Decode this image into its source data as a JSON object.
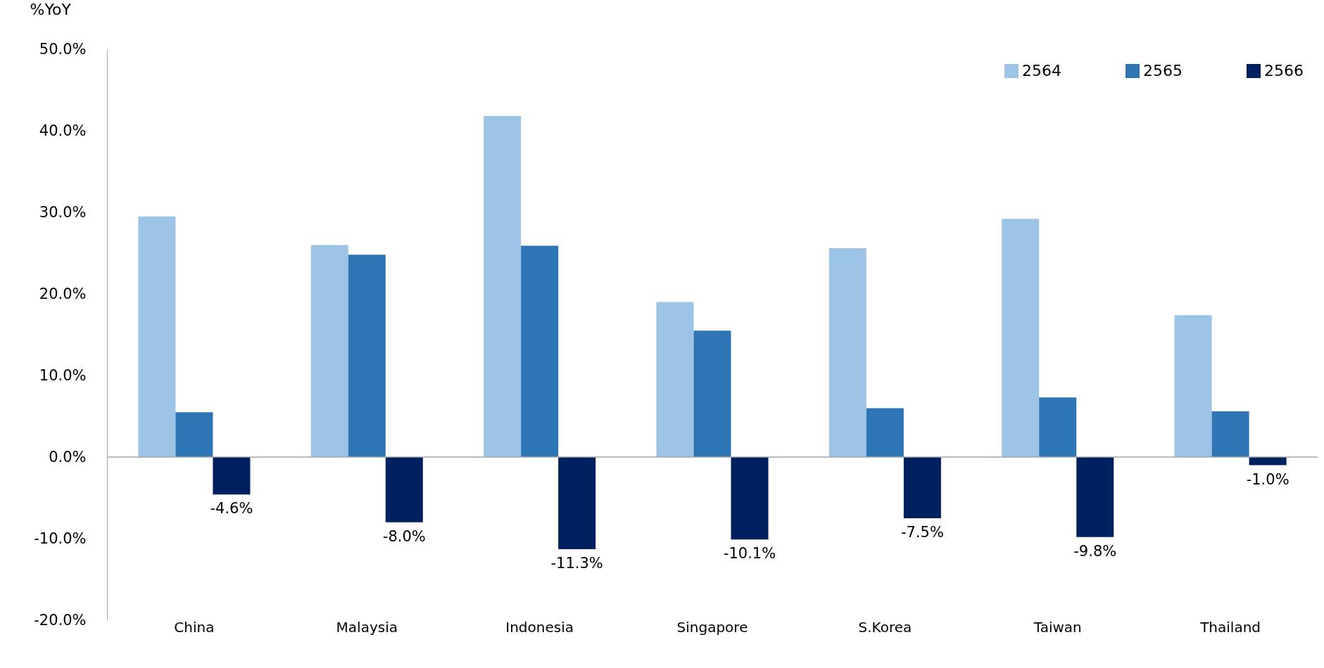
{
  "chart_data": {
    "type": "bar",
    "ylabel": "%YoY",
    "categories": [
      "China",
      "Malaysia",
      "Indonesia",
      "Singapore",
      "S.Korea",
      "Taiwan",
      "Thailand"
    ],
    "series": [
      {
        "name": "2564",
        "color": "#9dc3e6",
        "values": [
          29.5,
          26.0,
          41.8,
          19.0,
          25.6,
          29.2,
          17.4
        ]
      },
      {
        "name": "2565",
        "color": "#2e75b6",
        "values": [
          5.5,
          24.8,
          25.9,
          15.5,
          6.0,
          7.3,
          5.6
        ]
      },
      {
        "name": "2566",
        "color": "#002060",
        "values": [
          -4.6,
          -8.0,
          -11.3,
          -10.1,
          -7.5,
          -9.8,
          -1.0
        ],
        "value_labels": [
          "-4.6%",
          "-8.0%",
          "-11.3%",
          "-10.1%",
          "-7.5%",
          "-9.8%",
          "-1.0%"
        ]
      }
    ],
    "ylim": [
      -20,
      50
    ],
    "yticks": [
      {
        "value": -20,
        "label": "-20.0%"
      },
      {
        "value": -10,
        "label": "-10.0%"
      },
      {
        "value": 0,
        "label": "0.0%"
      },
      {
        "value": 10,
        "label": "10.0%"
      },
      {
        "value": 20,
        "label": "20.0%"
      },
      {
        "value": 30,
        "label": "30.0%"
      },
      {
        "value": 40,
        "label": "40.0%"
      },
      {
        "value": 50,
        "label": "50.0%"
      }
    ],
    "ref_lines": [
      {
        "axis": "y",
        "value": 0,
        "color": "#a6a6a6"
      }
    ],
    "legend": "top right"
  }
}
